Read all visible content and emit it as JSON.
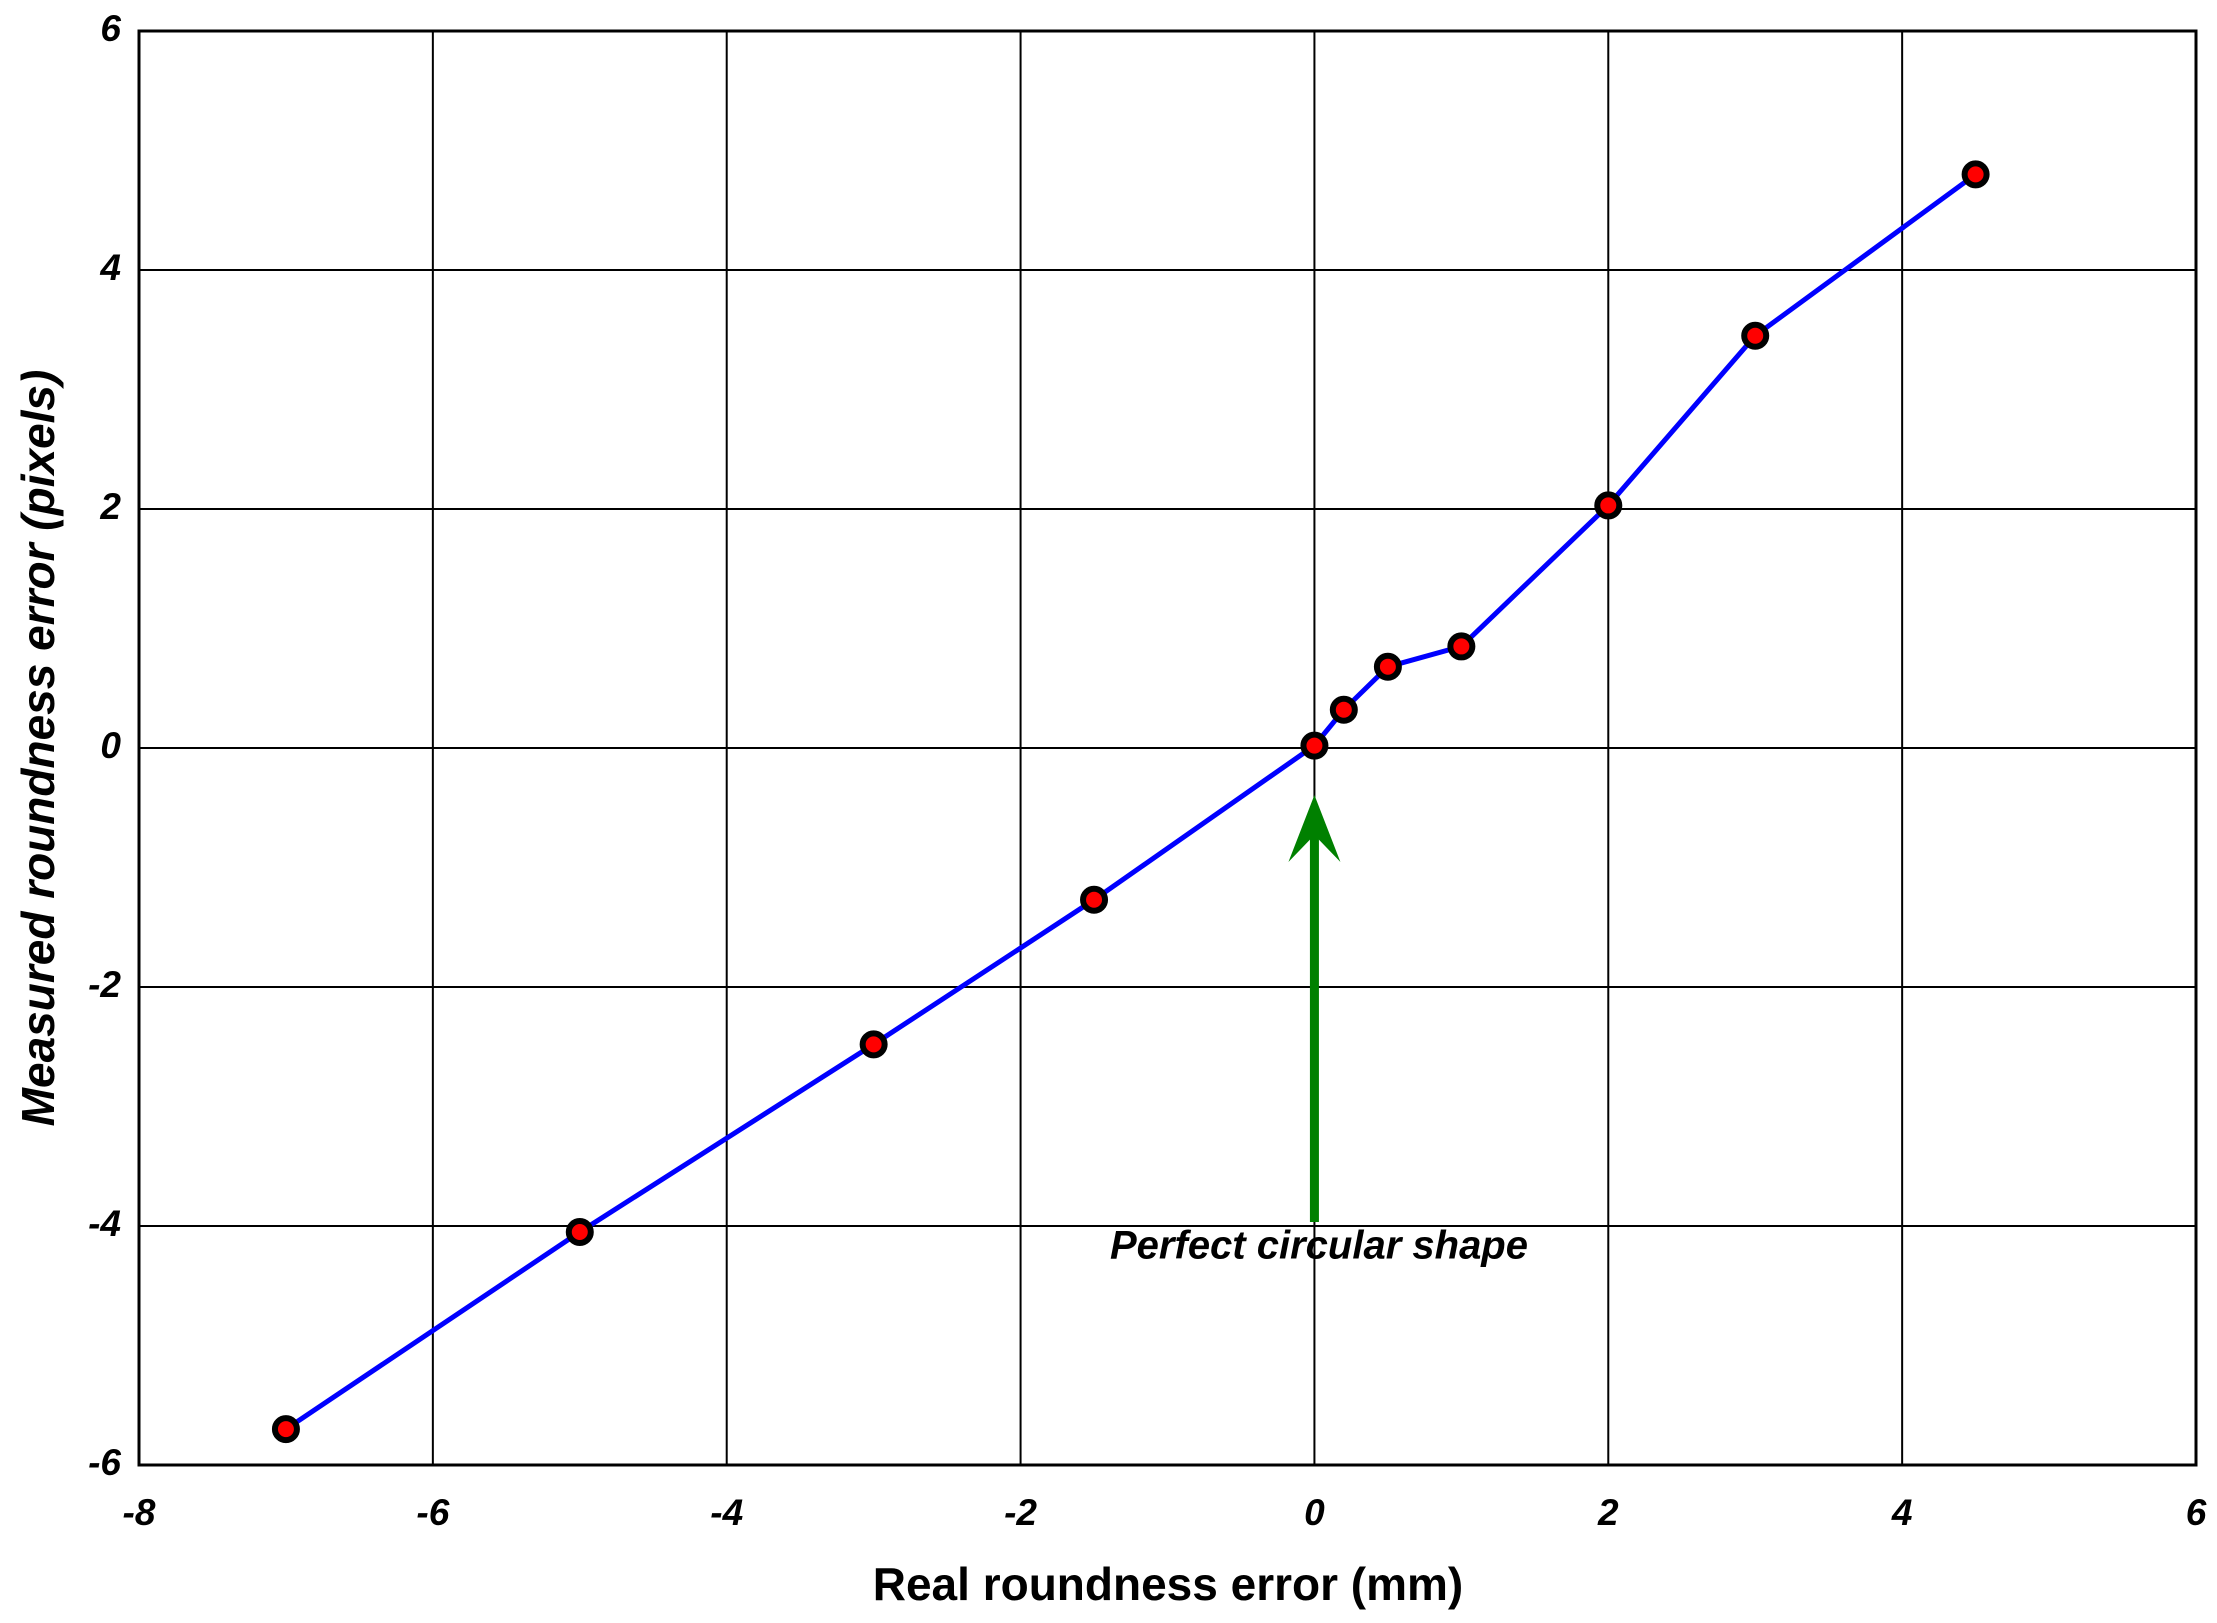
{
  "chart_data": {
    "type": "line",
    "xlabel": "Real roundness error (mm)",
    "ylabel": "Measured roundness error (pixels)",
    "annotation": "Perfect circular shape",
    "x": [
      -7,
      -5,
      -3,
      -1.5,
      0,
      0.2,
      0.5,
      1,
      2,
      3,
      4.5
    ],
    "series": [
      {
        "color": "#0000ff",
        "marker_color": "#ff0000",
        "values": [
          -5.7,
          -4.05,
          -2.48,
          -1.27,
          0.02,
          0.32,
          0.68,
          0.85,
          2.03,
          3.45,
          4.8
        ]
      }
    ],
    "xlim": [
      -8,
      6
    ],
    "xticks": [
      -8,
      -6,
      -4,
      -2,
      0,
      2,
      4,
      6
    ],
    "ylim": [
      -6,
      6
    ],
    "yticks": [
      -6,
      -4,
      -2,
      0,
      2,
      4,
      6
    ],
    "grid": true,
    "annotation_color": "#008000"
  }
}
